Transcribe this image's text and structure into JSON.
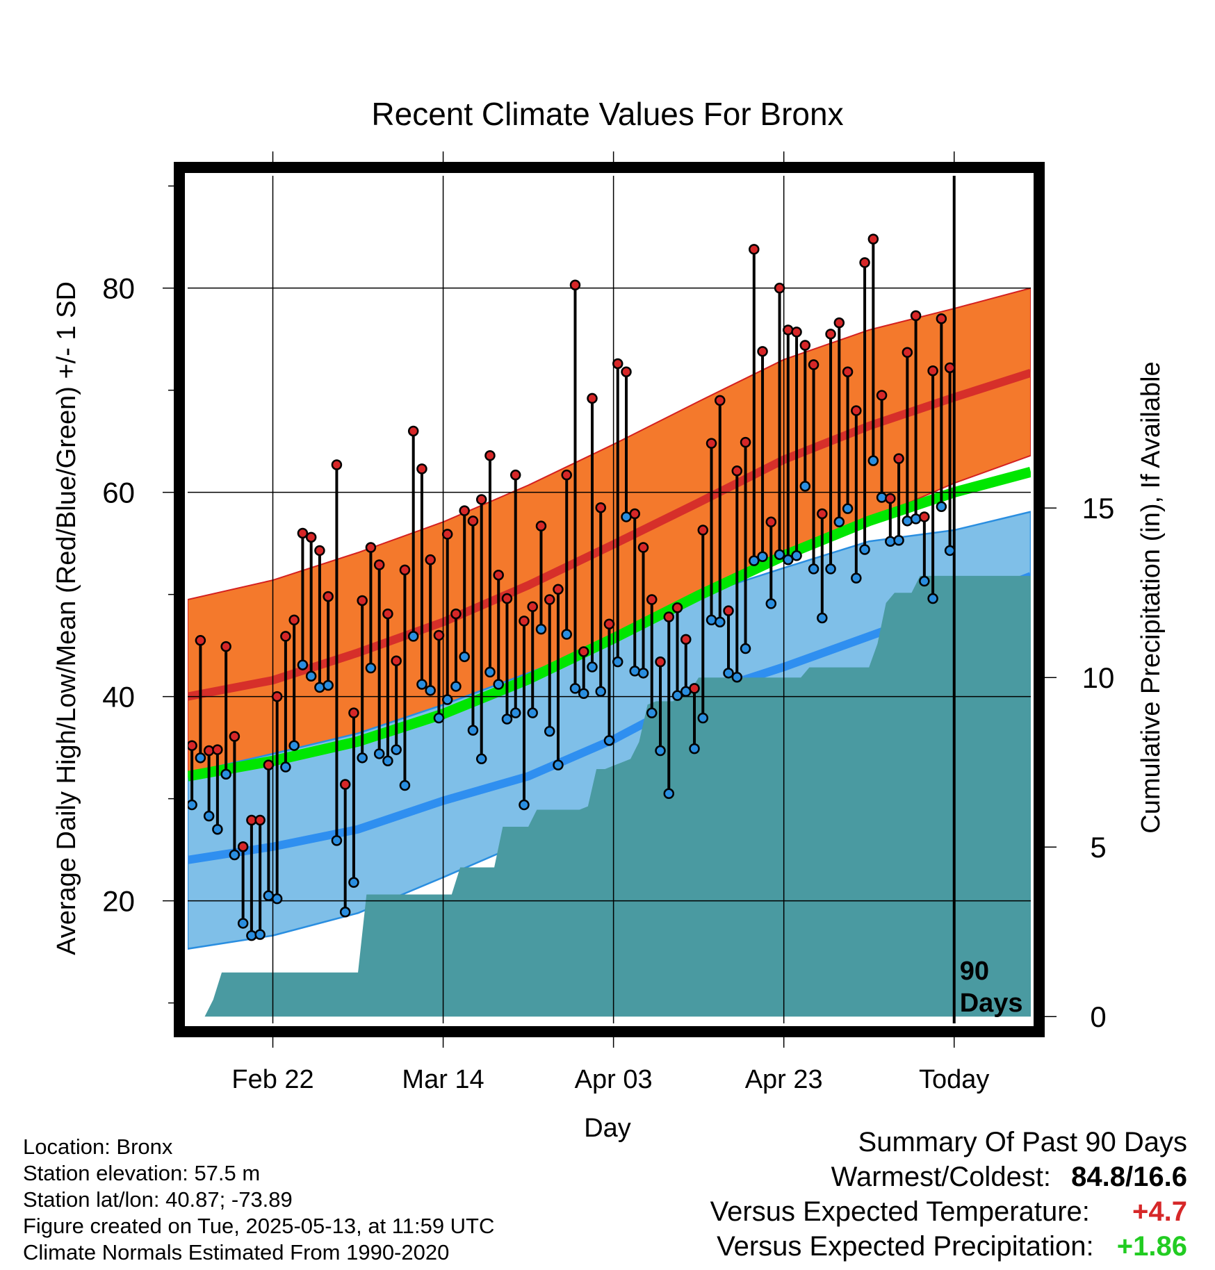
{
  "chart_data": {
    "type": "line",
    "title": "Recent Climate Values For Bronx",
    "xlabel": "Day",
    "ylabel": "Average Daily High/Low/Mean (Red/Blue/Green) +/- 1 SD",
    "ylabel_right": "Cumulative Precipitation (in), If Available",
    "xlim": [
      0,
      99
    ],
    "ylim": [
      8,
      91
    ],
    "y2lim": [
      -0.2,
      24.8
    ],
    "x_ticks": [
      {
        "day": 10,
        "label": "Feb 22"
      },
      {
        "day": 30,
        "label": "Mar 14"
      },
      {
        "day": 50,
        "label": "Apr 03"
      },
      {
        "day": 70,
        "label": "Apr 23"
      },
      {
        "day": 90,
        "label": "Today"
      }
    ],
    "y_ticks": [
      20,
      40,
      60,
      80
    ],
    "y2_ticks": [
      0,
      5,
      10,
      15
    ],
    "today_day": 90,
    "today_label": [
      "90",
      "Days"
    ],
    "grid": true,
    "normals": {
      "days": [
        0,
        10,
        20,
        30,
        40,
        50,
        60,
        70,
        80,
        90,
        99
      ],
      "high_mean": [
        40.0,
        41.6,
        44.3,
        47.3,
        50.9,
        54.9,
        59.0,
        63.2,
        66.5,
        69.3,
        71.7
      ],
      "high_upper": [
        49.5,
        51.4,
        54.1,
        57.1,
        60.7,
        64.7,
        68.9,
        73.0,
        75.9,
        78.0,
        80.0
      ],
      "high_lower": [
        31.0,
        32.6,
        34.4,
        37.0,
        40.5,
        44.8,
        49.3,
        53.7,
        57.3,
        60.9,
        63.6
      ],
      "mean": [
        32.2,
        33.7,
        35.6,
        38.3,
        41.7,
        45.7,
        49.9,
        53.8,
        57.2,
        60.0,
        62.0
      ],
      "low_mean": [
        24.0,
        25.3,
        27.0,
        29.8,
        32.2,
        35.8,
        40.2,
        42.9,
        45.9,
        48.9,
        51.8
      ],
      "low_upper": [
        32.5,
        34.4,
        36.4,
        39.2,
        42.3,
        45.6,
        49.9,
        52.6,
        55.2,
        56.3,
        58.1
      ],
      "low_lower": [
        15.3,
        16.6,
        18.8,
        22.3,
        25.9,
        29.1,
        32.9,
        36.1,
        39.9,
        42.9,
        45.6
      ]
    },
    "series": [
      {
        "name": "High",
        "color": "#d62728",
        "values": [
          35.2,
          45.5,
          34.7,
          34.8,
          44.9,
          36.1,
          25.3,
          27.9,
          27.9,
          33.3,
          40.0,
          45.9,
          47.5,
          56.0,
          55.6,
          54.3,
          49.8,
          62.7,
          31.4,
          38.4,
          49.4,
          54.6,
          52.9,
          48.1,
          43.5,
          52.4,
          66.0,
          62.3,
          53.4,
          46.0,
          55.9,
          48.1,
          58.2,
          57.2,
          59.3,
          63.6,
          51.9,
          49.6,
          61.7,
          47.4,
          48.8,
          56.7,
          49.5,
          50.5,
          61.7,
          80.3,
          44.4,
          69.2,
          58.5,
          47.1,
          72.6,
          71.8,
          57.9,
          54.6,
          49.5,
          43.4,
          47.8,
          48.7,
          45.6,
          40.8,
          56.3,
          64.8,
          69.0,
          48.4,
          62.1,
          64.9,
          83.8,
          73.8,
          57.1,
          80.0,
          75.9,
          75.7,
          74.4,
          72.5,
          57.9,
          75.5,
          76.6,
          71.8,
          68.0,
          82.5,
          84.8,
          69.5,
          59.4,
          63.3,
          73.7,
          77.3,
          57.6,
          71.9,
          77.0,
          72.2
        ]
      },
      {
        "name": "Low",
        "color": "#2a8ee0",
        "values": [
          29.4,
          34.0,
          28.3,
          27.0,
          32.4,
          24.5,
          17.8,
          16.6,
          16.7,
          20.5,
          20.2,
          33.1,
          35.2,
          43.1,
          42.0,
          40.9,
          41.1,
          25.9,
          18.9,
          21.8,
          34.0,
          42.8,
          34.4,
          33.7,
          34.8,
          31.3,
          45.9,
          41.2,
          40.6,
          37.9,
          39.7,
          41.0,
          43.9,
          36.7,
          33.9,
          42.4,
          41.2,
          37.8,
          38.4,
          29.4,
          38.4,
          46.6,
          36.6,
          33.3,
          46.1,
          40.8,
          40.3,
          42.9,
          40.5,
          35.7,
          43.4,
          57.6,
          42.5,
          42.3,
          38.4,
          34.7,
          30.5,
          40.1,
          40.5,
          34.9,
          37.9,
          47.5,
          47.3,
          42.3,
          41.9,
          44.7,
          53.3,
          53.7,
          49.1,
          53.9,
          53.4,
          53.8,
          60.6,
          52.5,
          47.7,
          52.5,
          57.1,
          58.4,
          51.6,
          54.4,
          63.1,
          59.5,
          55.2,
          55.3,
          57.2,
          57.4,
          51.3,
          49.6,
          58.6,
          54.3
        ]
      }
    ],
    "precip_cumulative": {
      "days": [
        0,
        2,
        3,
        4,
        20,
        21,
        22,
        31,
        32,
        33,
        36,
        37,
        40,
        41,
        46,
        47,
        48,
        49,
        52,
        53,
        54,
        55,
        56,
        57,
        58,
        59,
        60,
        61,
        62,
        69,
        70,
        71,
        72,
        73,
        74,
        75,
        80,
        81,
        82,
        83,
        84,
        85,
        86,
        87,
        88,
        99
      ],
      "values": [
        0,
        0,
        0.5,
        1.3,
        1.3,
        3.6,
        3.6,
        3.6,
        4.4,
        4.4,
        4.4,
        5.6,
        5.6,
        6.1,
        6.1,
        6.2,
        7.3,
        7.3,
        7.6,
        8.1,
        9.2,
        9.3,
        9.3,
        9.3,
        9.6,
        9.6,
        10.0,
        10.0,
        10.0,
        10.0,
        10.0,
        10.0,
        10.0,
        10.3,
        10.3,
        10.3,
        10.3,
        11.0,
        12.2,
        12.5,
        12.5,
        12.5,
        13.0,
        13.0,
        13.0,
        13.0
      ]
    },
    "colors": {
      "high_band": "#f4792c",
      "high_mean_line": "#d62f2a",
      "mean_line": "#00e600",
      "low_band": "#7fbfe8",
      "low_mean_line": "#2f8ff0",
      "precip_fill": "#4a9aa1"
    }
  },
  "info": {
    "location": "Location: Bronx",
    "elevation": "Station elevation: 57.5 m",
    "latlon": "Station lat/lon: 40.87; -73.89",
    "created": "Figure created on Tue, 2025-05-13, at 11:59 UTC",
    "normals_note": "Climate Normals Estimated From 1990-2020"
  },
  "summary": {
    "title": "Summary Of Past 90 Days",
    "warmest_label": "Warmest/Coldest:",
    "warmest_value": "84.8/16.6",
    "temp_label": "Versus Expected Temperature:",
    "temp_value": "+4.7",
    "temp_color": "#d62728",
    "precip_label": "Versus Expected Precipitation:",
    "precip_value": "+1.86",
    "precip_color": "#22cc22"
  }
}
